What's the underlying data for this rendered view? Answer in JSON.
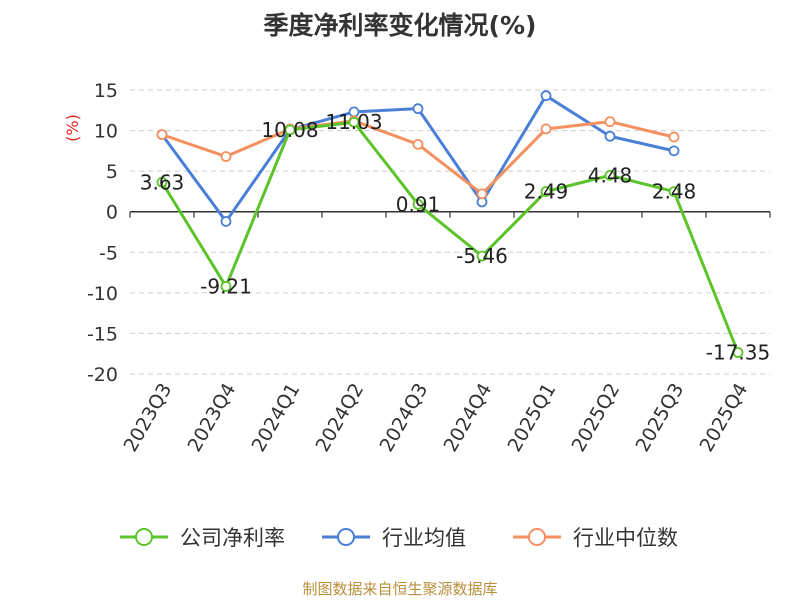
{
  "chart_data": {
    "type": "line",
    "title": "季度净利率变化情况(%)",
    "ylabel": "(%)",
    "categories": [
      "2023Q3",
      "2023Q4",
      "2024Q1",
      "2024Q2",
      "2024Q3",
      "2024Q4",
      "2025Q1",
      "2025Q2",
      "2025Q3",
      "2025Q4"
    ],
    "ylim": [
      -20,
      15
    ],
    "yticks": [
      15,
      10,
      5,
      0,
      -5,
      -10,
      -15,
      -20
    ],
    "grid": true,
    "legend_position": "bottom",
    "series": [
      {
        "name": "公司净利率",
        "color": "#5cc42a",
        "values": [
          3.63,
          -9.21,
          10.08,
          11.03,
          0.91,
          -5.46,
          2.49,
          4.48,
          2.48,
          -17.35
        ],
        "labels": [
          "3.63",
          "-9.21",
          "10.08",
          "11.03",
          "0.91",
          "-5.46",
          "2.49",
          "4.48",
          "2.48",
          "-17.35"
        ]
      },
      {
        "name": "行业均值",
        "color": "#4a7fd8",
        "values": [
          9.5,
          -1.2,
          10.1,
          12.3,
          12.7,
          1.2,
          14.3,
          9.3,
          7.5,
          null
        ]
      },
      {
        "name": "行业中位数",
        "color": "#f5905e",
        "values": [
          9.5,
          6.8,
          10.2,
          11.2,
          8.3,
          2.2,
          10.2,
          11.1,
          9.2,
          null
        ]
      }
    ]
  },
  "source": "制图数据来自恒生聚源数据库"
}
